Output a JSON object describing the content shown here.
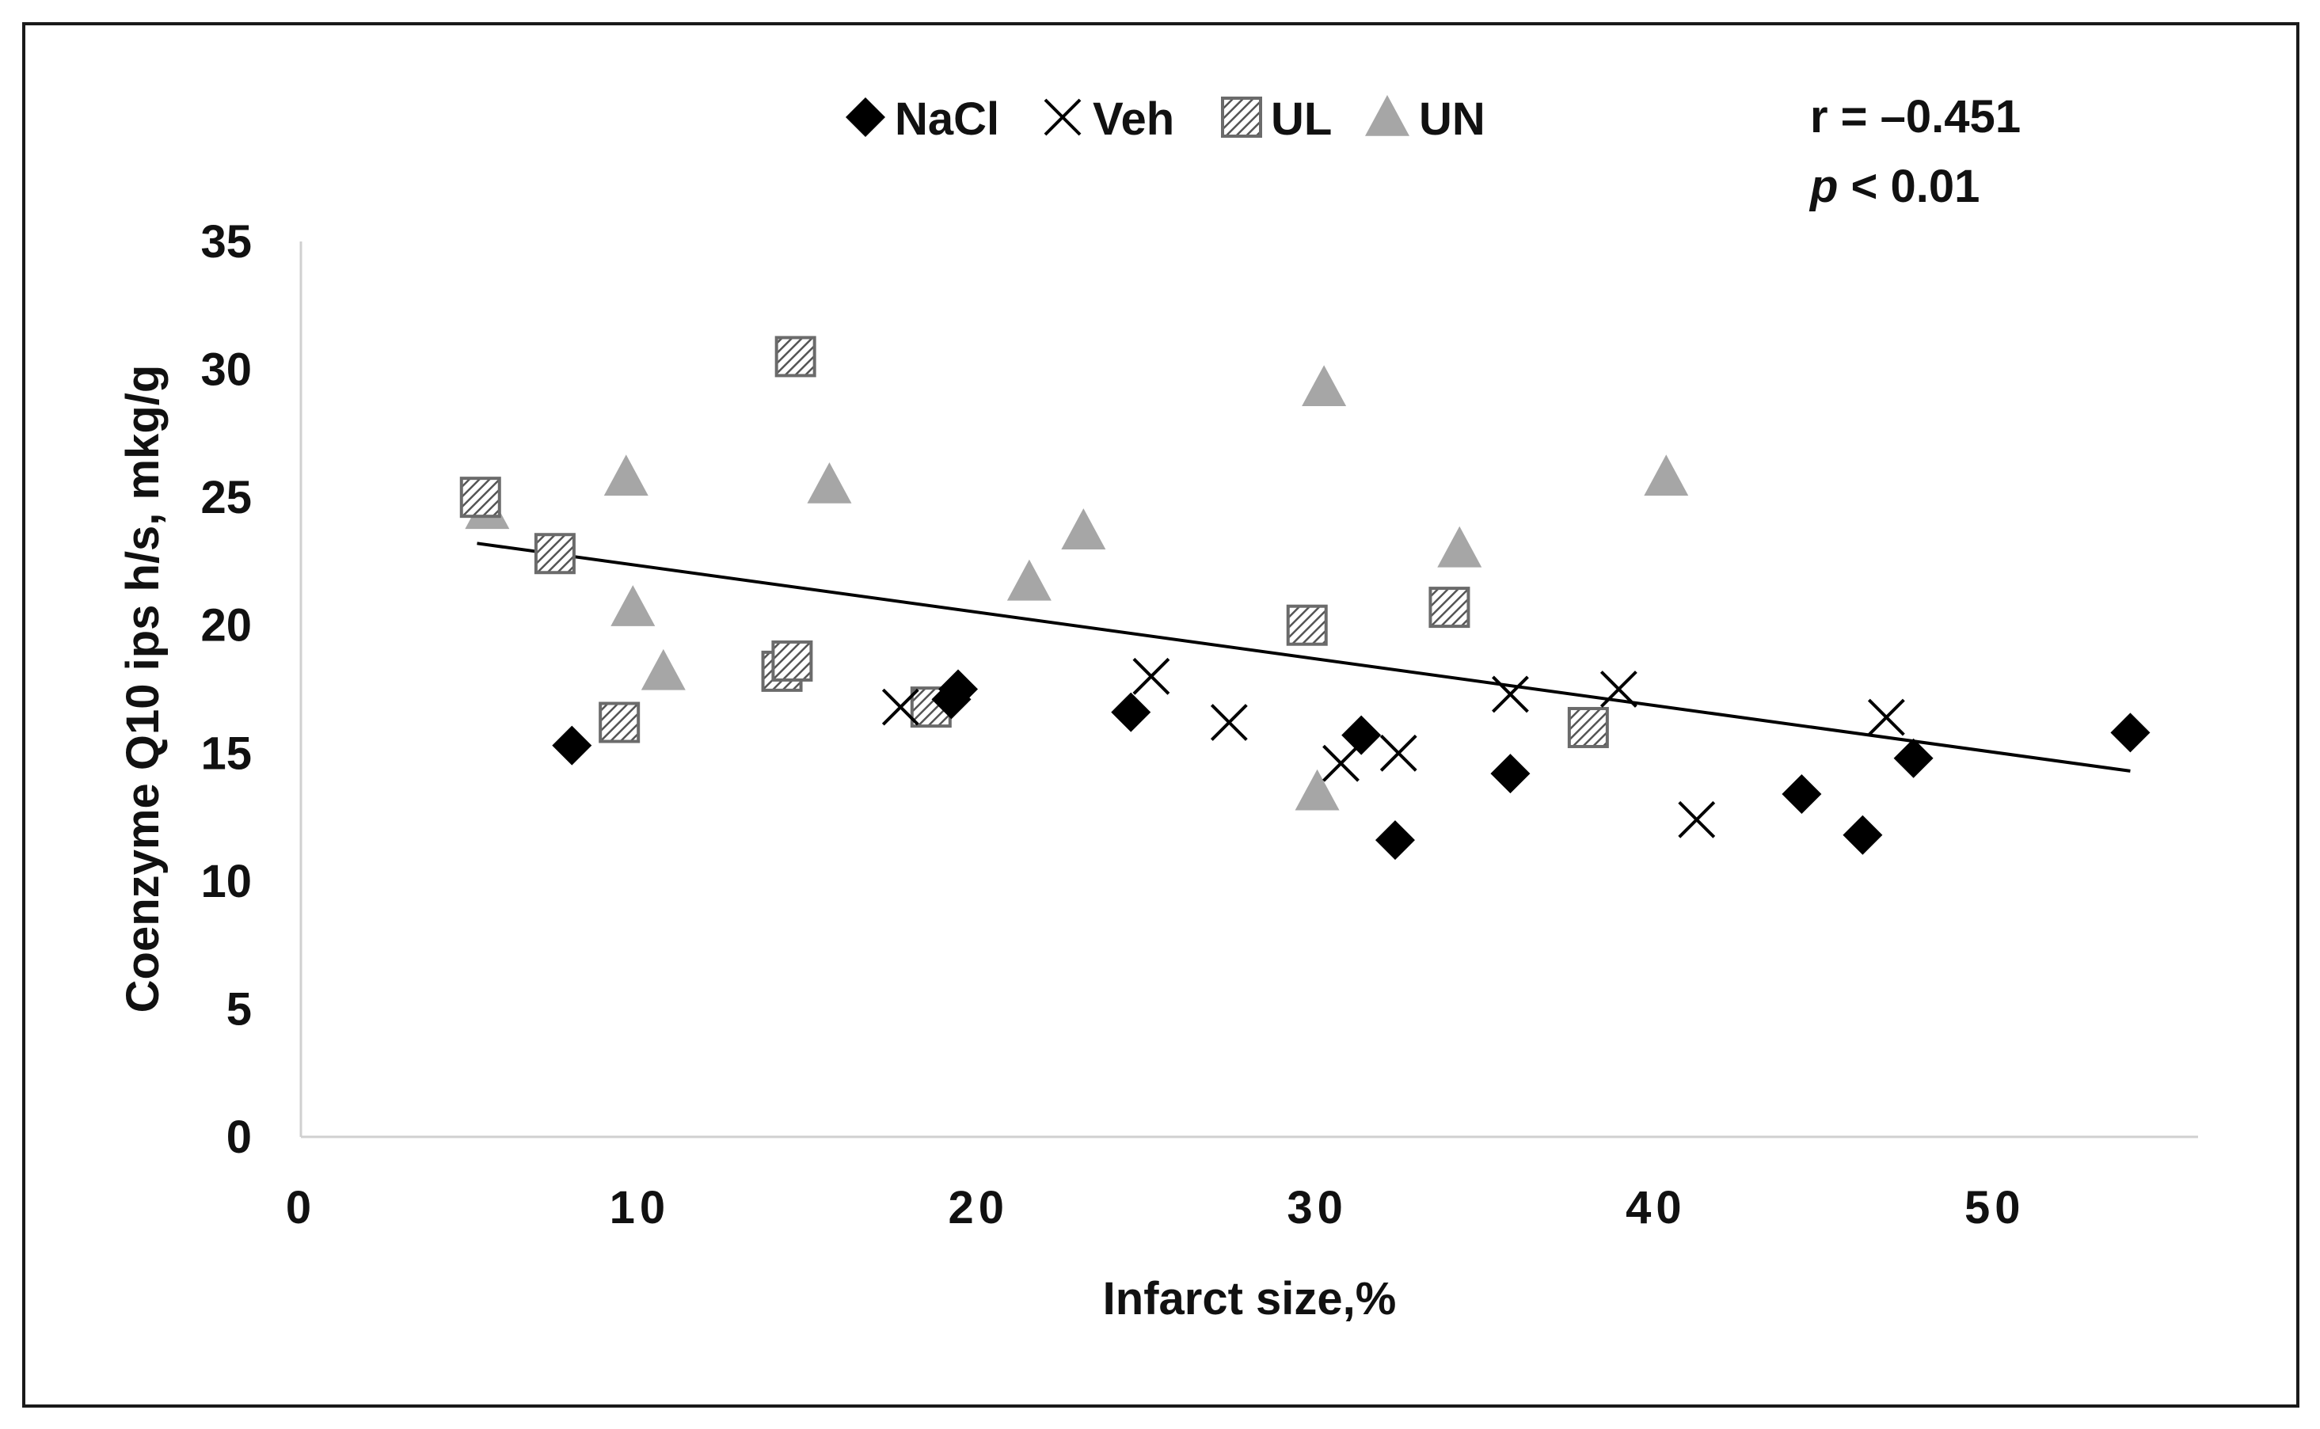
{
  "chart_data": {
    "type": "scatter",
    "xlabel": "Infarct size,%",
    "ylabel": "Coenzyme Q10 ips h/s, mkg/g",
    "xlim": [
      0,
      56
    ],
    "ylim": [
      0,
      35
    ],
    "xticks": [
      "0",
      "10",
      "20",
      "30",
      "40",
      "50"
    ],
    "yticks": [
      "0",
      "5",
      "10",
      "15",
      "20",
      "25",
      "30",
      "35"
    ],
    "grid": false,
    "legend_position": "top-center",
    "stats": {
      "r_label": "r = –0.451",
      "p_symbol": "p",
      "p_rest": " < 0.01"
    },
    "trendline": {
      "x1": 5.2,
      "y1": 23.2,
      "x2": 54.0,
      "y2": 14.3
    },
    "colors": {
      "nacl": "#000000",
      "veh": "#000000",
      "ul": "#555555",
      "un": "#a6a6a6",
      "line": "#000000"
    },
    "series": [
      {
        "name": "NaCl",
        "marker": "diamond",
        "points": [
          [
            8.0,
            15.3
          ],
          [
            19.2,
            17.1
          ],
          [
            19.4,
            17.5
          ],
          [
            24.5,
            16.6
          ],
          [
            31.3,
            15.7
          ],
          [
            32.3,
            11.6
          ],
          [
            35.7,
            14.2
          ],
          [
            44.3,
            13.4
          ],
          [
            46.1,
            11.8
          ],
          [
            47.6,
            14.8
          ],
          [
            54.0,
            15.8
          ]
        ]
      },
      {
        "name": "Veh",
        "marker": "cross",
        "points": [
          [
            17.7,
            16.8
          ],
          [
            25.1,
            18.0
          ],
          [
            27.4,
            16.2
          ],
          [
            30.7,
            14.6
          ],
          [
            32.4,
            15.0
          ],
          [
            35.7,
            17.3
          ],
          [
            38.9,
            17.5
          ],
          [
            41.2,
            12.4
          ],
          [
            46.8,
            16.4
          ]
        ]
      },
      {
        "name": "UL",
        "marker": "hatched-square",
        "points": [
          [
            5.3,
            25.0
          ],
          [
            7.5,
            22.8
          ],
          [
            9.4,
            16.2
          ],
          [
            14.2,
            18.2
          ],
          [
            14.5,
            18.6
          ],
          [
            14.6,
            30.5
          ],
          [
            18.6,
            16.8
          ],
          [
            29.7,
            20.0
          ],
          [
            33.9,
            20.7
          ],
          [
            38.0,
            16.0
          ]
        ]
      },
      {
        "name": "UN",
        "marker": "triangle",
        "points": [
          [
            5.5,
            24.5
          ],
          [
            9.6,
            25.8
          ],
          [
            9.8,
            20.7
          ],
          [
            10.7,
            18.2
          ],
          [
            15.6,
            25.5
          ],
          [
            21.5,
            21.7
          ],
          [
            23.1,
            23.7
          ],
          [
            30.0,
            13.5
          ],
          [
            30.2,
            29.3
          ],
          [
            34.2,
            23.0
          ],
          [
            40.3,
            25.8
          ]
        ]
      }
    ]
  }
}
